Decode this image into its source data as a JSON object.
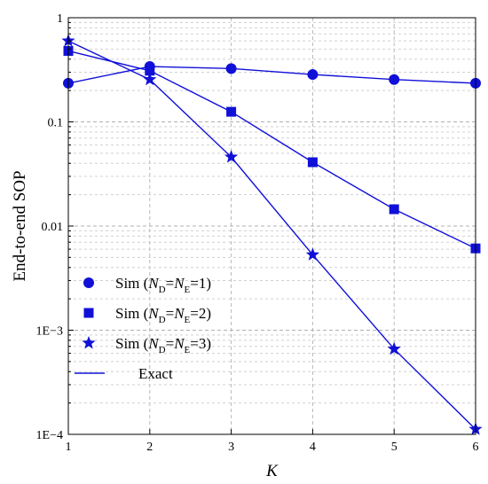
{
  "chart_data": {
    "type": "line",
    "xlabel": "K",
    "ylabel": "End-to-end SOP",
    "x_ticks": [
      "1",
      "2",
      "3",
      "4",
      "5",
      "6"
    ],
    "y_ticks": [
      "1E−4",
      "1E−3",
      "0.01",
      "0.1",
      "1"
    ],
    "xlim": [
      1,
      6
    ],
    "ylim": [
      0.0001,
      1
    ],
    "y_scale": "log",
    "grid": true,
    "line_color": "#1010d8",
    "legend_position": "bottom-left",
    "legend": {
      "sim_prefix": "Sim (",
      "n_symbol": "N",
      "sub_d": "D",
      "sub_e": "E",
      "exact_label": "Exact"
    },
    "series": [
      {
        "legend_value": "=1)",
        "marker": "circle",
        "x": [
          1,
          2,
          3,
          4,
          5,
          6
        ],
        "y": [
          0.235,
          0.34,
          0.325,
          0.285,
          0.255,
          0.235
        ]
      },
      {
        "legend_value": "=2)",
        "marker": "square",
        "x": [
          1,
          2,
          3,
          4,
          5,
          6
        ],
        "y": [
          0.48,
          0.31,
          0.125,
          0.041,
          0.0145,
          0.0061
        ]
      },
      {
        "legend_value": "=3)",
        "marker": "star",
        "x": [
          1,
          2,
          3,
          4,
          5,
          6
        ],
        "y": [
          0.6,
          0.255,
          0.046,
          0.0053,
          0.00066,
          0.000112
        ]
      }
    ]
  }
}
